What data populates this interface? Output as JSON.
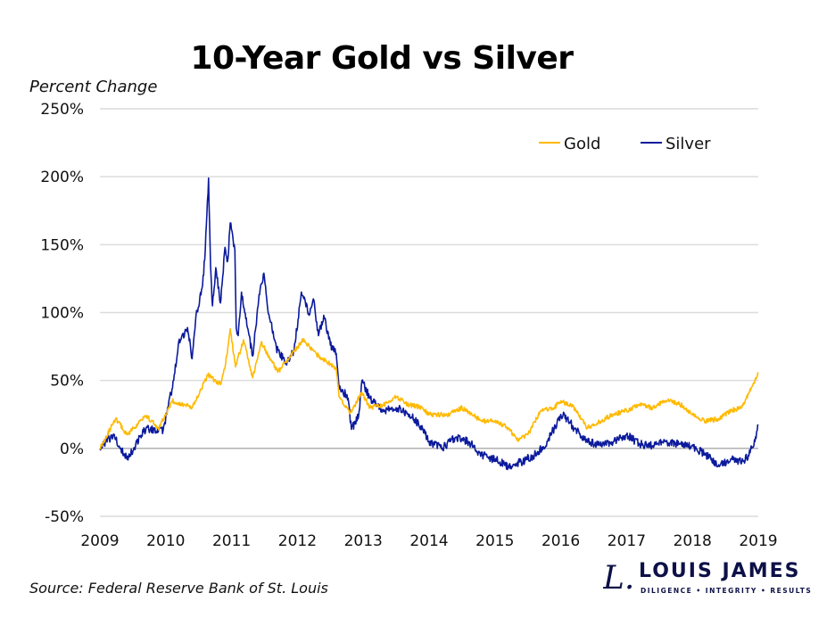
{
  "chart_data": {
    "type": "line",
    "title": "10-Year Gold vs Silver",
    "ylabel": "Percent Change",
    "xlabel": "",
    "source": "Source: Federal Reserve Bank of St. Louis",
    "xlim": [
      2009,
      2019
    ],
    "ylim": [
      -50,
      250
    ],
    "x_ticks": [
      "2009",
      "2010",
      "2011",
      "2012",
      "2013",
      "2014",
      "2015",
      "2016",
      "2017",
      "2018",
      "2019"
    ],
    "y_ticks": [
      {
        "value": 250,
        "label": "250%"
      },
      {
        "value": 200,
        "label": "200%"
      },
      {
        "value": 150,
        "label": "150%"
      },
      {
        "value": 100,
        "label": "100%"
      },
      {
        "value": 50,
        "label": "50%"
      },
      {
        "value": 0,
        "label": "0%"
      },
      {
        "value": -50,
        "label": "-50%"
      }
    ],
    "grid": true,
    "legend_position": "top-right",
    "series": [
      {
        "name": "Gold",
        "color": "#ffb900",
        "points": [
          [
            2009.0,
            0
          ],
          [
            2009.24,
            22
          ],
          [
            2009.41,
            10
          ],
          [
            2009.7,
            24
          ],
          [
            2009.9,
            15
          ],
          [
            2010.0,
            25
          ],
          [
            2010.1,
            35
          ],
          [
            2010.4,
            30
          ],
          [
            2010.64,
            54
          ],
          [
            2010.83,
            47
          ],
          [
            2010.91,
            63
          ],
          [
            2010.98,
            88
          ],
          [
            2011.06,
            60
          ],
          [
            2011.18,
            80
          ],
          [
            2011.32,
            52
          ],
          [
            2011.45,
            78
          ],
          [
            2011.7,
            56
          ],
          [
            2012.09,
            80
          ],
          [
            2012.32,
            68
          ],
          [
            2012.59,
            59
          ],
          [
            2012.63,
            39
          ],
          [
            2012.8,
            26
          ],
          [
            2012.98,
            41
          ],
          [
            2013.1,
            30
          ],
          [
            2013.3,
            32
          ],
          [
            2013.5,
            38
          ],
          [
            2013.7,
            32
          ],
          [
            2013.9,
            30
          ],
          [
            2014.0,
            25
          ],
          [
            2014.3,
            25
          ],
          [
            2014.5,
            30
          ],
          [
            2014.8,
            20
          ],
          [
            2015.0,
            20
          ],
          [
            2015.2,
            15
          ],
          [
            2015.35,
            6
          ],
          [
            2015.5,
            10
          ],
          [
            2015.7,
            28
          ],
          [
            2015.9,
            30
          ],
          [
            2016.0,
            35
          ],
          [
            2016.2,
            30
          ],
          [
            2016.4,
            15
          ],
          [
            2016.6,
            20
          ],
          [
            2016.8,
            25
          ],
          [
            2017.0,
            28
          ],
          [
            2017.2,
            32
          ],
          [
            2017.4,
            30
          ],
          [
            2017.6,
            35
          ],
          [
            2017.8,
            33
          ],
          [
            2018.0,
            25
          ],
          [
            2018.2,
            20
          ],
          [
            2018.4,
            22
          ],
          [
            2018.6,
            28
          ],
          [
            2018.75,
            30
          ],
          [
            2018.85,
            40
          ],
          [
            2018.95,
            50
          ],
          [
            2019.0,
            56
          ]
        ]
      },
      {
        "name": "Silver",
        "color": "#0b1a9c",
        "points": [
          [
            2009.0,
            0
          ],
          [
            2009.2,
            10
          ],
          [
            2009.41,
            -8
          ],
          [
            2009.7,
            15
          ],
          [
            2009.96,
            13
          ],
          [
            2010.12,
            50
          ],
          [
            2010.19,
            76
          ],
          [
            2010.33,
            89
          ],
          [
            2010.4,
            66
          ],
          [
            2010.46,
            98
          ],
          [
            2010.56,
            120
          ],
          [
            2010.6,
            146
          ],
          [
            2010.65,
            199
          ],
          [
            2010.68,
            135
          ],
          [
            2010.71,
            105
          ],
          [
            2010.76,
            133
          ],
          [
            2010.83,
            107
          ],
          [
            2010.9,
            148
          ],
          [
            2010.94,
            138
          ],
          [
            2010.98,
            166
          ],
          [
            2011.05,
            146
          ],
          [
            2011.07,
            89
          ],
          [
            2011.1,
            83
          ],
          [
            2011.15,
            115
          ],
          [
            2011.24,
            89
          ],
          [
            2011.32,
            68
          ],
          [
            2011.41,
            109
          ],
          [
            2011.49,
            129
          ],
          [
            2011.55,
            102
          ],
          [
            2011.68,
            74
          ],
          [
            2011.82,
            63
          ],
          [
            2011.95,
            72
          ],
          [
            2012.06,
            115
          ],
          [
            2012.18,
            98
          ],
          [
            2012.25,
            109
          ],
          [
            2012.32,
            83
          ],
          [
            2012.4,
            98
          ],
          [
            2012.5,
            76
          ],
          [
            2012.59,
            70
          ],
          [
            2012.63,
            46
          ],
          [
            2012.77,
            37
          ],
          [
            2012.82,
            14
          ],
          [
            2012.93,
            24
          ],
          [
            2012.98,
            50
          ],
          [
            2013.1,
            37
          ],
          [
            2013.3,
            28
          ],
          [
            2013.5,
            30
          ],
          [
            2013.7,
            25
          ],
          [
            2013.9,
            15
          ],
          [
            2014.0,
            5
          ],
          [
            2014.2,
            0
          ],
          [
            2014.4,
            8
          ],
          [
            2014.6,
            5
          ],
          [
            2014.8,
            -5
          ],
          [
            2015.0,
            -8
          ],
          [
            2015.2,
            -13
          ],
          [
            2015.4,
            -10
          ],
          [
            2015.6,
            -5
          ],
          [
            2015.8,
            5
          ],
          [
            2015.9,
            15
          ],
          [
            2016.0,
            25
          ],
          [
            2016.1,
            22
          ],
          [
            2016.2,
            15
          ],
          [
            2016.4,
            5
          ],
          [
            2016.6,
            2
          ],
          [
            2016.8,
            5
          ],
          [
            2017.0,
            10
          ],
          [
            2017.2,
            3
          ],
          [
            2017.4,
            2
          ],
          [
            2017.6,
            5
          ],
          [
            2017.8,
            3
          ],
          [
            2018.0,
            2
          ],
          [
            2018.2,
            -5
          ],
          [
            2018.4,
            -12
          ],
          [
            2018.6,
            -8
          ],
          [
            2018.75,
            -10
          ],
          [
            2018.85,
            -5
          ],
          [
            2018.95,
            5
          ],
          [
            2019.0,
            17
          ]
        ]
      }
    ]
  },
  "logo": {
    "name": "LOUIS JAMES",
    "tagline": "DILIGENCE • INTEGRITY • RESULTS",
    "color": "#0d1147"
  }
}
